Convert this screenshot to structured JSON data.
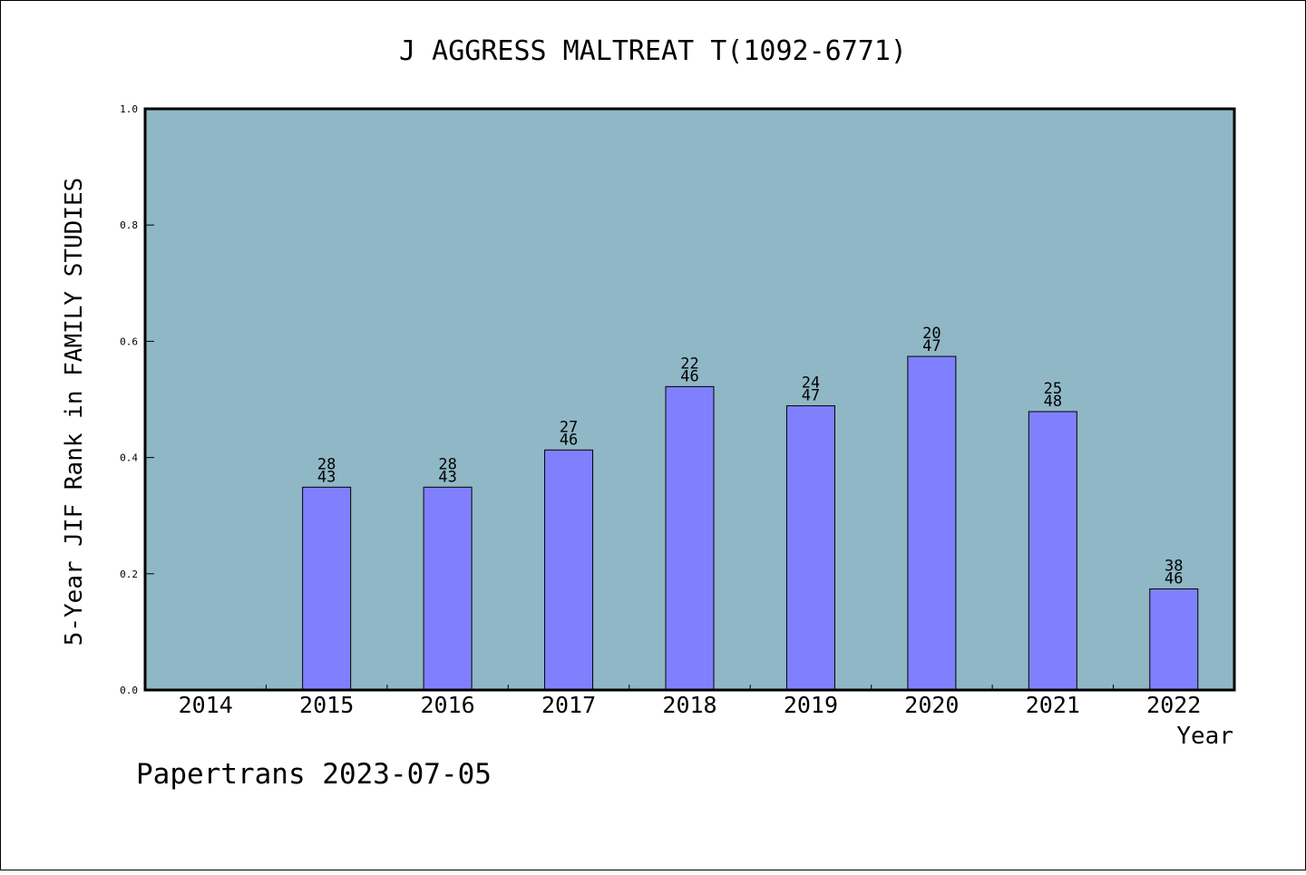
{
  "chart_data": {
    "type": "bar",
    "title": "J AGGRESS MALTREAT T(1092-6771)",
    "xlabel": "Year",
    "ylabel": "5-Year JIF Rank in FAMILY STUDIES",
    "footer": "Papertrans 2023-07-05",
    "categories": [
      "2014",
      "2015",
      "2016",
      "2017",
      "2018",
      "2019",
      "2020",
      "2021",
      "2022"
    ],
    "values": [
      null,
      0.349,
      0.349,
      0.413,
      0.522,
      0.489,
      0.574,
      0.479,
      0.174
    ],
    "rank_labels": [
      null,
      {
        "rank": "28",
        "total": "43"
      },
      {
        "rank": "28",
        "total": "43"
      },
      {
        "rank": "27",
        "total": "46"
      },
      {
        "rank": "22",
        "total": "46"
      },
      {
        "rank": "24",
        "total": "47"
      },
      {
        "rank": "20",
        "total": "47"
      },
      {
        "rank": "25",
        "total": "48"
      },
      {
        "rank": "38",
        "total": "46"
      }
    ],
    "ylim": [
      0,
      1.0
    ],
    "yticks": [
      "0.0",
      "0.2",
      "0.4",
      "0.6",
      "0.8",
      "1.0"
    ],
    "grid": false,
    "legend": "none",
    "colors": {
      "plot_background": "#8fb7c5",
      "bar_fill": "#8080ff",
      "bar_stroke": "#000000",
      "frame": "#000000"
    }
  }
}
